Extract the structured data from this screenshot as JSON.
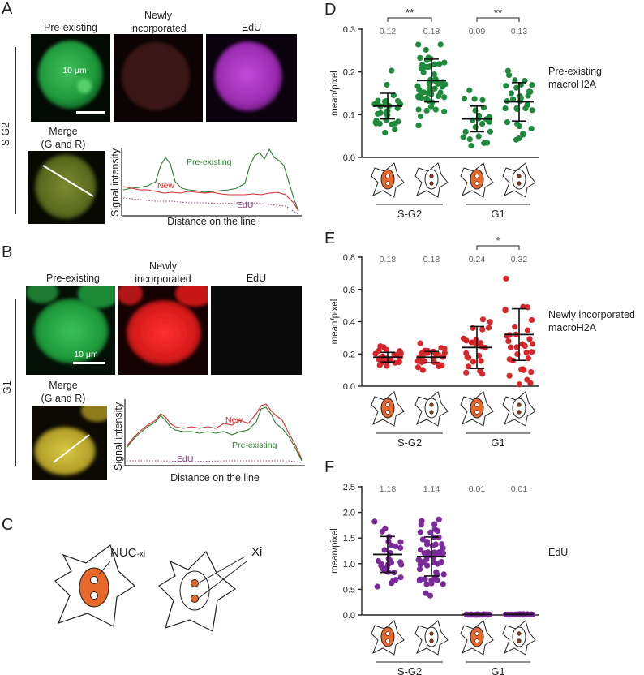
{
  "panels": {
    "A": {
      "label": "A",
      "col_titles": [
        "Pre-existing",
        "Newly\nincorporated",
        "EdU"
      ],
      "side_label": "S-G2",
      "scale_bar": "10 μm",
      "merge_title": "Merge\n(G and R)",
      "profile": {
        "ylabel": "Signal intensity",
        "xlabel": "Distance on the line",
        "label_pre": "Pre-existing",
        "label_new": "New",
        "label_edu": "EdU"
      }
    },
    "B": {
      "label": "B",
      "col_titles": [
        "Pre-existing",
        "Newly\nincorporated",
        "EdU"
      ],
      "side_label": "G1",
      "scale_bar": "10 μm",
      "merge_title": "Merge\n(G and R)",
      "profile": {
        "ylabel": "Signal intensity",
        "xlabel": "Distance on the line",
        "label_pre": "Pre-existing",
        "label_new": "New",
        "label_edu": "EdU"
      }
    },
    "C": {
      "label": "C",
      "label_nuc": "NUC",
      "label_nuc_sub": "-xi",
      "label_xi": "Xi"
    }
  },
  "colors": {
    "green": "#1e8a3c",
    "red": "#d7262b",
    "purple": "#7a2a9a",
    "orange": "#e8682a",
    "profile_green": "#2e7d32",
    "profile_red": "#d32f2f",
    "profile_edu": "#8e3b7a"
  },
  "chart_data": [
    {
      "id": "D",
      "label": "D",
      "type": "scatter",
      "ylabel": "mean/pixel",
      "ylim": [
        0,
        0.3
      ],
      "yticks": [
        "0.0",
        "0.1",
        "0.2",
        "0.3"
      ],
      "group_labels": [
        "S-G2",
        "G1"
      ],
      "series_label": "Pre-existing\nmacroH2A",
      "color": "#1e8a3c",
      "means": [
        0.12,
        0.18,
        0.09,
        0.13
      ],
      "mean_labels": [
        "0.12",
        "0.18",
        "0.09",
        "0.13"
      ],
      "sd": [
        0.03,
        0.05,
        0.03,
        0.045
      ],
      "n": [
        30,
        55,
        22,
        32
      ],
      "spread": [
        0.032,
        0.045,
        0.032,
        0.04
      ],
      "significance": [
        {
          "from": 0,
          "to": 1,
          "label": "**"
        },
        {
          "from": 2,
          "to": 3,
          "label": "**"
        }
      ]
    },
    {
      "id": "E",
      "label": "E",
      "type": "scatter",
      "ylabel": "mean/pixel",
      "ylim": [
        0,
        0.8
      ],
      "yticks": [
        "0.0",
        "0.2",
        "0.4",
        "0.6",
        "0.8"
      ],
      "group_labels": [
        "S-G2",
        "G1"
      ],
      "series_label": "Newly incorporated\nmacroH2A",
      "color": "#d7262b",
      "means": [
        0.18,
        0.18,
        0.24,
        0.32
      ],
      "mean_labels": [
        "0.18",
        "0.18",
        "0.24",
        "0.32"
      ],
      "sd": [
        0.03,
        0.035,
        0.13,
        0.16
      ],
      "n": [
        28,
        32,
        24,
        32
      ],
      "spread": [
        0.03,
        0.035,
        0.12,
        0.15
      ],
      "significance": [
        {
          "from": 2,
          "to": 3,
          "label": "*"
        }
      ]
    },
    {
      "id": "F",
      "label": "F",
      "type": "scatter",
      "ylabel": "mean/pixel",
      "ylim": [
        0,
        2.5
      ],
      "yticks": [
        "0.0",
        "0.5",
        "1.0",
        "1.5",
        "2.0",
        "2.5"
      ],
      "group_labels": [
        "S-G2",
        "G1"
      ],
      "series_label": "EdU",
      "color": "#7a2a9a",
      "means": [
        1.18,
        1.14,
        0.01,
        0.01
      ],
      "mean_labels": [
        "1.18",
        "1.14",
        "0.01",
        "0.01"
      ],
      "sd": [
        0.35,
        0.38,
        0.005,
        0.005
      ],
      "n": [
        30,
        60,
        20,
        20
      ],
      "spread": [
        0.32,
        0.35,
        0.004,
        0.004
      ],
      "significance": []
    }
  ]
}
